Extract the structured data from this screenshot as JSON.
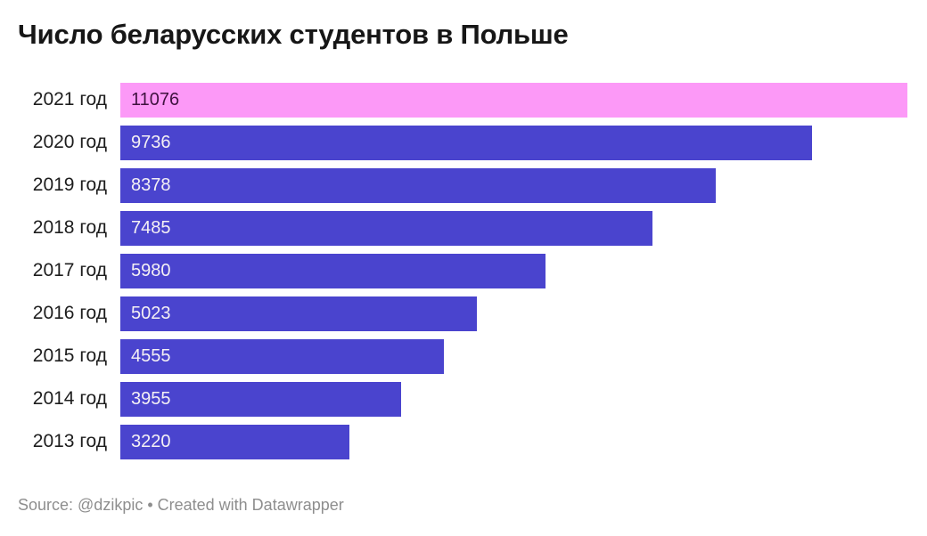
{
  "title": "Число беларусских студентов в Польше",
  "footer": {
    "full_text": "Source: @dzikpic • Created with Datawrapper"
  },
  "colors": {
    "background": "#ffffff",
    "title_text": "#161616",
    "label_text": "#1d1d1d",
    "bar_default": "#4a44ce",
    "bar_highlight": "#fc99f7",
    "value_on_default": "#f4f0f4",
    "value_on_highlight": "#3f123f",
    "footer_text": "#8e8e8e"
  },
  "chart_data": {
    "type": "bar",
    "orientation": "horizontal",
    "title": "Число беларусских студентов в Польше",
    "categories": [
      "2021 год",
      "2020 год",
      "2019 год",
      "2018 год",
      "2017 год",
      "2016 год",
      "2015 год",
      "2014 год",
      "2013 год"
    ],
    "values": [
      11076,
      9736,
      8378,
      7485,
      5980,
      5023,
      4555,
      3955,
      3220
    ],
    "value_labels": [
      "11076",
      "9736",
      "8378",
      "7485",
      "5980",
      "5023",
      "4555",
      "3955",
      "3220"
    ],
    "xlim": [
      0,
      11076
    ],
    "highlight_category": "2021 год",
    "grid": false,
    "legend": false,
    "value_labels_position": "inside-start"
  }
}
